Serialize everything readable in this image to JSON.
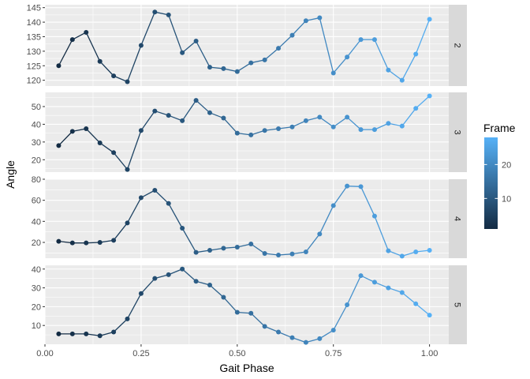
{
  "chart_data": {
    "type": "line",
    "xlabel": "Gait Phase",
    "ylabel": "Angle",
    "xlim": [
      0.0,
      1.05
    ],
    "x_ticks": [
      "0.00",
      "0.25",
      "0.50",
      "0.75",
      "1.00"
    ],
    "x_tick_values": [
      0.0,
      0.25,
      0.5,
      0.75,
      1.0
    ],
    "x": [
      0.0357,
      0.0714,
      0.1071,
      0.1429,
      0.1786,
      0.2143,
      0.25,
      0.2857,
      0.3214,
      0.3571,
      0.3929,
      0.4286,
      0.4643,
      0.5,
      0.5357,
      0.5714,
      0.6071,
      0.6429,
      0.6786,
      0.7143,
      0.75,
      0.7857,
      0.8214,
      0.8571,
      0.8929,
      0.9286,
      0.9643,
      1.0
    ],
    "frame": [
      1,
      2,
      3,
      4,
      5,
      6,
      7,
      8,
      9,
      10,
      11,
      12,
      13,
      14,
      15,
      16,
      17,
      18,
      19,
      20,
      21,
      22,
      23,
      24,
      25,
      26,
      27,
      28
    ],
    "color_scale": {
      "title": "Frame",
      "low": "#132B43",
      "high": "#56B1F7",
      "range": [
        1,
        28
      ],
      "ticks": [
        "10",
        "20"
      ],
      "tick_values": [
        10,
        20
      ]
    },
    "panel_background": "#EBEBEB",
    "strip_background": "#D9D9D9",
    "grid": true,
    "legend_position": "right",
    "facets": [
      {
        "label": "2",
        "ylim": [
          118,
          146
        ],
        "y_ticks": [
          "120",
          "125",
          "130",
          "135",
          "140",
          "145"
        ],
        "y_tick_values": [
          120,
          125,
          130,
          135,
          140,
          145
        ],
        "values": [
          125,
          134,
          136.5,
          126.5,
          121.5,
          119.5,
          132,
          143.5,
          142.5,
          129.5,
          133.5,
          124.5,
          124,
          123,
          126,
          127,
          131,
          135.5,
          140.5,
          141.5,
          122.5,
          128,
          134,
          134,
          123.5,
          120,
          129,
          141
        ]
      },
      {
        "label": "3",
        "ylim": [
          13,
          58
        ],
        "y_ticks": [
          "20",
          "30",
          "40",
          "50"
        ],
        "y_tick_values": [
          20,
          30,
          40,
          50
        ],
        "values": [
          28,
          36,
          37.5,
          29.5,
          24,
          14.5,
          36.5,
          47.5,
          45,
          42,
          53.5,
          46.5,
          43.5,
          35,
          34,
          36.5,
          37.5,
          38.5,
          42,
          44,
          38.5,
          44,
          37,
          37,
          40.5,
          39,
          49,
          56
        ]
      },
      {
        "label": "4",
        "ylim": [
          5,
          80
        ],
        "y_ticks": [
          "20",
          "40",
          "60",
          "80"
        ],
        "y_tick_values": [
          20,
          40,
          60,
          80
        ],
        "values": [
          21,
          19.5,
          19.5,
          20,
          22,
          38.5,
          62.5,
          69.5,
          57,
          33.5,
          10.5,
          12.5,
          14.5,
          15.5,
          18.5,
          9.5,
          8,
          9,
          11,
          28,
          55,
          73.5,
          73,
          45,
          12,
          7,
          11,
          12.5
        ]
      },
      {
        "label": "5",
        "ylim": [
          0,
          42
        ],
        "y_ticks": [
          "10",
          "20",
          "30",
          "40"
        ],
        "y_tick_values": [
          10,
          20,
          30,
          40
        ],
        "values": [
          5.5,
          5.5,
          5.5,
          4.5,
          6.5,
          13.5,
          27,
          35,
          37,
          40,
          33.5,
          31.5,
          25,
          17,
          16.5,
          9.5,
          6.5,
          3.5,
          1,
          3,
          7.5,
          21,
          36.5,
          33,
          30,
          27.5,
          21.5,
          15.5
        ]
      }
    ]
  }
}
